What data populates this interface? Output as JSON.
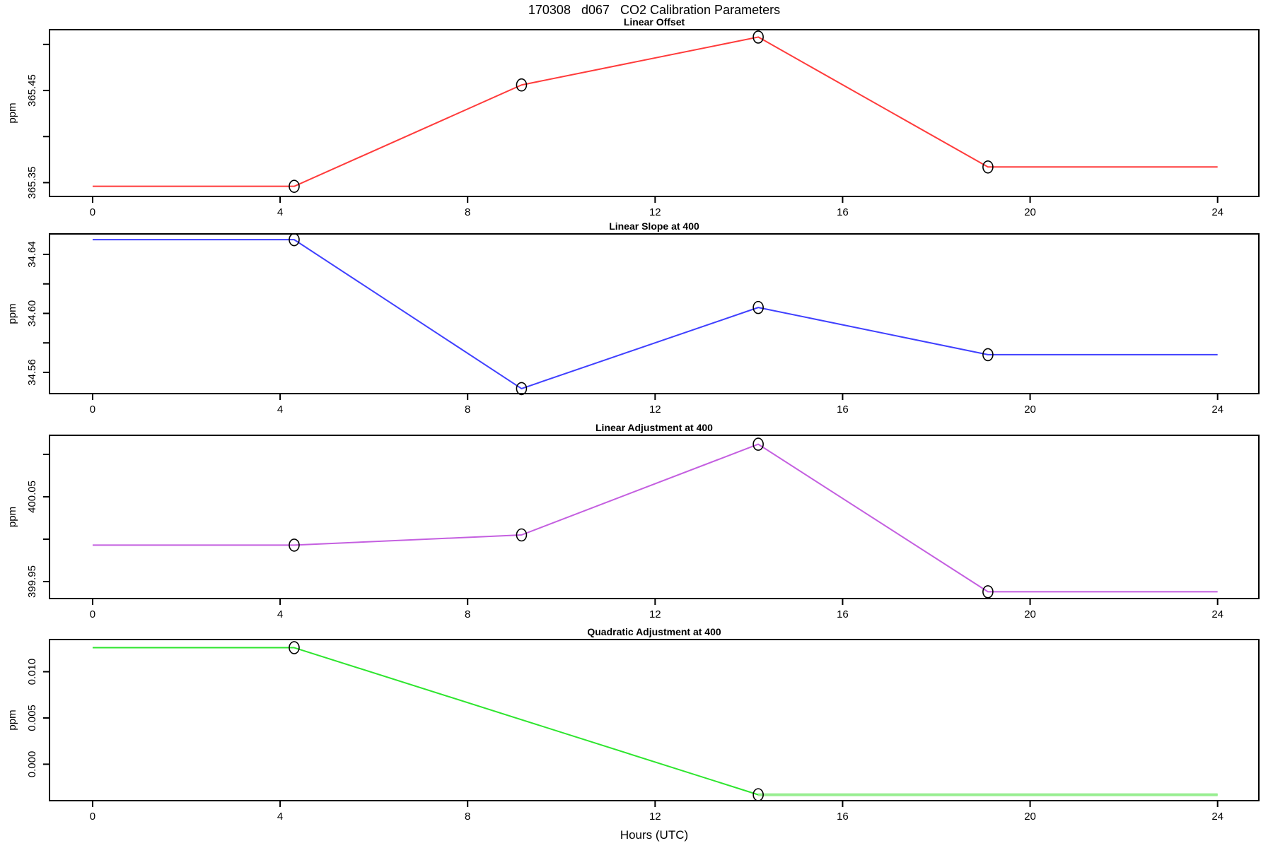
{
  "page_title": "170308   d067   CO2 Calibration Parameters",
  "xlabel": "Hours (UTC)",
  "chart_data": [
    {
      "type": "line",
      "title": "Linear Offset",
      "ylabel": "ppm",
      "color": "#ff3b3b",
      "x": [
        0,
        4.3,
        9.15,
        14.2,
        19.1,
        24
      ],
      "values": [
        365.346,
        365.346,
        365.456,
        365.508,
        365.367,
        365.367
      ],
      "marker_x": [
        4.3,
        9.15,
        14.2,
        19.1
      ],
      "xlim": [
        -0.92,
        24.88
      ],
      "ylim": [
        365.335,
        365.516
      ],
      "xticks": [
        0,
        4,
        8,
        12,
        16,
        20,
        24
      ],
      "yticks": [
        365.35,
        365.4,
        365.45,
        365.5
      ],
      "ytick_labels": [
        "365.35",
        "",
        "365.45",
        ""
      ],
      "grid": false
    },
    {
      "type": "line",
      "title": "Linear Slope at 400",
      "ylabel": "ppm",
      "color": "#4040ff",
      "x": [
        0,
        4.3,
        9.15,
        14.2,
        19.1,
        24
      ],
      "values": [
        34.65,
        34.65,
        34.549,
        34.604,
        34.572,
        34.572
      ],
      "marker_x": [
        4.3,
        9.15,
        14.2,
        19.1
      ],
      "xlim": [
        -0.92,
        24.88
      ],
      "ylim": [
        34.5456,
        34.6539
      ],
      "xticks": [
        0,
        4,
        8,
        12,
        16,
        20,
        24
      ],
      "yticks": [
        34.56,
        34.58,
        34.6,
        34.62,
        34.64
      ],
      "ytick_labels": [
        "34.56",
        "",
        "34.60",
        "",
        "34.64"
      ],
      "grid": false
    },
    {
      "type": "line",
      "title": "Linear Adjustment at 400",
      "ylabel": "ppm",
      "color": "#c45fe0",
      "x": [
        0,
        4.3,
        9.15,
        14.2,
        19.1,
        24
      ],
      "values": [
        399.993,
        399.993,
        400.005,
        400.112,
        399.938,
        399.938
      ],
      "marker_x": [
        4.3,
        9.15,
        14.2,
        19.1
      ],
      "xlim": [
        -0.92,
        24.88
      ],
      "ylim": [
        399.93,
        400.1225
      ],
      "xticks": [
        0,
        4,
        8,
        12,
        16,
        20,
        24
      ],
      "yticks": [
        399.95,
        400.0,
        400.05,
        400.1
      ],
      "ytick_labels": [
        "399.95",
        "",
        "400.05",
        ""
      ],
      "grid": false
    },
    {
      "type": "line",
      "title": "Quadratic Adjustment at 400",
      "ylabel": "ppm",
      "color": "#2ee52e",
      "tail_color": "#98ee90",
      "tail_from_x": 14.2,
      "x": [
        0,
        4.3,
        14.2,
        24
      ],
      "values": [
        0.0126,
        0.0126,
        -0.0033,
        -0.0033
      ],
      "marker_x": [
        4.3,
        14.2
      ],
      "xlim": [
        -0.92,
        24.88
      ],
      "ylim": [
        -0.00394,
        0.01348
      ],
      "xticks": [
        0,
        4,
        8,
        12,
        16,
        20,
        24
      ],
      "yticks": [
        0.0,
        0.005,
        0.01
      ],
      "ytick_labels": [
        "0.000",
        "0.005",
        "0.010"
      ],
      "grid": false
    }
  ]
}
